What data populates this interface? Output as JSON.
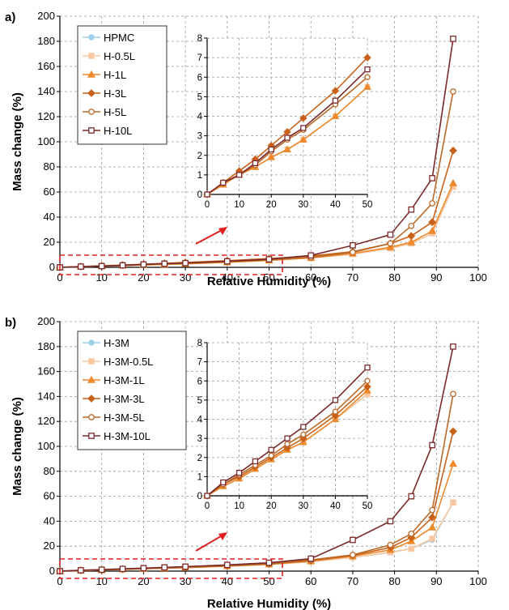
{
  "chart_data": [
    {
      "type": "line",
      "panel_label": "a)",
      "xlabel": "Relative Humidity (%)",
      "ylabel": "Mass change (%)",
      "xlim": [
        0,
        100
      ],
      "ylim": [
        0,
        200
      ],
      "xticks": [
        "0",
        "10",
        "20",
        "30",
        "40",
        "50",
        "60",
        "70",
        "80",
        "90",
        "100"
      ],
      "yticks": [
        "0",
        "20",
        "40",
        "60",
        "80",
        "100",
        "120",
        "140",
        "160",
        "180",
        "200"
      ],
      "legend_position": "top-left",
      "grid": true,
      "series": [
        {
          "name": "HPMC",
          "color": "#9fd0ea",
          "marker": "circle-filled",
          "x": [
            0,
            5,
            10,
            15,
            20,
            25,
            30,
            40,
            50,
            60,
            70,
            79,
            84,
            89,
            94
          ],
          "y": [
            0,
            0.5,
            1,
            1.4,
            1.9,
            2.3,
            2.8,
            4,
            5.5,
            7.5,
            10.5,
            15,
            19,
            27,
            64
          ]
        },
        {
          "name": "H-0.5L",
          "color": "#f8c7a0",
          "marker": "square-filled",
          "x": [
            0,
            5,
            10,
            15,
            20,
            25,
            30,
            40,
            50,
            60,
            70,
            79,
            84,
            89,
            94
          ],
          "y": [
            0,
            0.5,
            1,
            1.4,
            1.9,
            2.3,
            2.8,
            4,
            5.5,
            7.5,
            10.5,
            15,
            19,
            27,
            64
          ]
        },
        {
          "name": "H-1L",
          "color": "#ee8a2c",
          "marker": "triangle-filled",
          "x": [
            0,
            5,
            10,
            15,
            20,
            25,
            30,
            40,
            50,
            60,
            70,
            79,
            84,
            89,
            94
          ],
          "y": [
            0,
            0.5,
            1,
            1.4,
            1.9,
            2.3,
            2.8,
            4,
            5.5,
            7.5,
            11,
            16,
            20,
            29,
            67
          ]
        },
        {
          "name": "H-3L",
          "color": "#c8621a",
          "marker": "diamond-filled",
          "x": [
            0,
            5,
            10,
            15,
            20,
            25,
            30,
            40,
            50,
            60,
            70,
            79,
            84,
            89,
            94
          ],
          "y": [
            0,
            0.6,
            1.2,
            1.8,
            2.5,
            3.2,
            3.9,
            5.3,
            7,
            9,
            12.5,
            19,
            25,
            36,
            93
          ]
        },
        {
          "name": "H-5L",
          "color": "#b86a2a",
          "marker": "circle-open",
          "x": [
            0,
            5,
            10,
            15,
            20,
            25,
            30,
            40,
            50,
            60,
            70,
            79,
            84,
            89,
            94
          ],
          "y": [
            0,
            0.6,
            1,
            1.5,
            2.2,
            2.8,
            3.3,
            4.6,
            6,
            8,
            12,
            19,
            33,
            51,
            140
          ]
        },
        {
          "name": "H-10L",
          "color": "#7a2a2a",
          "marker": "square-open",
          "x": [
            0,
            5,
            10,
            15,
            20,
            25,
            30,
            40,
            50,
            60,
            70,
            79,
            84,
            89,
            94
          ],
          "y": [
            0,
            0.6,
            1,
            1.6,
            2.3,
            2.9,
            3.4,
            4.8,
            6.4,
            9.5,
            17.5,
            26,
            46,
            71,
            182
          ]
        }
      ],
      "inset": {
        "xlim": [
          0,
          50
        ],
        "ylim": [
          0,
          8
        ],
        "xticks": [
          "0",
          "10",
          "20",
          "30",
          "40",
          "50"
        ],
        "yticks": [
          "0",
          "1",
          "2",
          "3",
          "4",
          "5",
          "6",
          "7",
          "8"
        ]
      }
    },
    {
      "type": "line",
      "panel_label": "b)",
      "xlabel": "Relative Humidity (%)",
      "ylabel": "Mass change (%)",
      "xlim": [
        0,
        100
      ],
      "ylim": [
        0,
        200
      ],
      "xticks": [
        "0",
        "10",
        "20",
        "30",
        "40",
        "50",
        "60",
        "70",
        "80",
        "90",
        "100"
      ],
      "yticks": [
        "0",
        "20",
        "40",
        "60",
        "80",
        "100",
        "120",
        "140",
        "160",
        "180",
        "200"
      ],
      "legend_position": "top-left",
      "grid": true,
      "series": [
        {
          "name": "H-3M",
          "color": "#9fd0ea",
          "marker": "circle-filled",
          "x": [
            0,
            5,
            10,
            15,
            20,
            25,
            30,
            40,
            50,
            60,
            70,
            79,
            84,
            89,
            94
          ],
          "y": [
            0,
            0.5,
            0.9,
            1.4,
            1.9,
            2.4,
            2.8,
            4,
            5.3,
            7.5,
            11,
            15,
            18,
            25,
            55
          ]
        },
        {
          "name": "H-3M-0.5L",
          "color": "#f8c7a0",
          "marker": "square-filled",
          "x": [
            0,
            5,
            10,
            15,
            20,
            25,
            30,
            40,
            50,
            60,
            70,
            79,
            84,
            89,
            94
          ],
          "y": [
            0,
            0.5,
            0.9,
            1.4,
            1.9,
            2.4,
            2.8,
            4,
            5.3,
            7.5,
            11,
            15,
            18,
            26,
            55
          ]
        },
        {
          "name": "H-3M-1L",
          "color": "#ee8a2c",
          "marker": "triangle-filled",
          "x": [
            0,
            5,
            10,
            15,
            20,
            25,
            30,
            40,
            50,
            60,
            70,
            79,
            84,
            89,
            94
          ],
          "y": [
            0,
            0.5,
            0.9,
            1.4,
            1.9,
            2.4,
            2.8,
            4,
            5.5,
            8,
            12,
            17,
            24,
            35,
            86
          ]
        },
        {
          "name": "H-3M-3L",
          "color": "#c8621a",
          "marker": "diamond-filled",
          "x": [
            0,
            5,
            10,
            15,
            20,
            25,
            30,
            40,
            50,
            60,
            70,
            79,
            84,
            89,
            94
          ],
          "y": [
            0,
            0.6,
            1,
            1.5,
            2,
            2.5,
            3,
            4.2,
            5.7,
            8.5,
            12.5,
            19,
            27,
            43,
            112
          ]
        },
        {
          "name": "H-3M-5L",
          "color": "#b86a2a",
          "marker": "circle-open",
          "x": [
            0,
            5,
            10,
            15,
            20,
            25,
            30,
            40,
            50,
            60,
            70,
            79,
            84,
            89,
            94
          ],
          "y": [
            0,
            0.6,
            1.1,
            1.6,
            2.1,
            2.7,
            3.2,
            4.4,
            6,
            9,
            13,
            21,
            30,
            49,
            142
          ]
        },
        {
          "name": "H-3M-10L",
          "color": "#7a2a2a",
          "marker": "square-open",
          "x": [
            0,
            5,
            10,
            15,
            20,
            25,
            30,
            40,
            50,
            60,
            70,
            79,
            84,
            89,
            94
          ],
          "y": [
            0,
            0.7,
            1.2,
            1.8,
            2.4,
            3,
            3.6,
            5,
            6.7,
            10,
            25,
            40,
            60,
            101,
            180
          ]
        }
      ],
      "inset": {
        "xlim": [
          0,
          50
        ],
        "ylim": [
          0,
          8
        ],
        "xticks": [
          "0",
          "10",
          "20",
          "30",
          "40",
          "50"
        ],
        "yticks": [
          "0",
          "1",
          "2",
          "3",
          "4",
          "5",
          "6",
          "7",
          "8"
        ]
      }
    }
  ]
}
